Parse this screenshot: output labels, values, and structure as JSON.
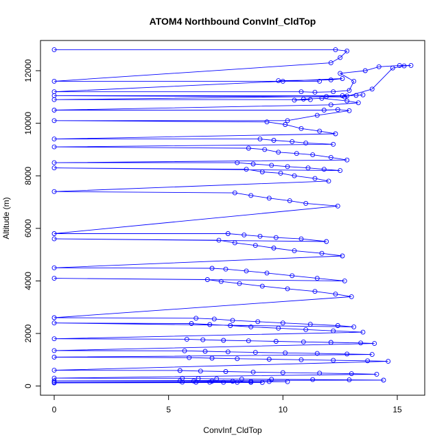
{
  "chart_data": {
    "type": "line",
    "title": "ATOM4 Northbound ConvInf_CldTop",
    "xlabel": "ConvInf_CldTop",
    "ylabel": "Altitude (m)",
    "xlim": [
      -0.6,
      16.2
    ],
    "ylim": [
      -350,
      13150
    ],
    "x_ticks": [
      0,
      5,
      10,
      15
    ],
    "x_tick_labels": [
      "0",
      "5",
      "10",
      "15"
    ],
    "y_ticks": [
      0,
      2000,
      4000,
      6000,
      8000,
      10000,
      12000
    ],
    "y_tick_labels": [
      "0",
      "2000",
      "4000",
      "6000",
      "8000",
      "10000",
      "12000"
    ],
    "grid": false,
    "series_color": "#0000ff",
    "markers": "open-circle",
    "series": [
      {
        "x": [
          0,
          12.3,
          12.8,
          12.5,
          12.1,
          0,
          11.6,
          10.0,
          9.8,
          12.1,
          12.6,
          0,
          10.8,
          11.4,
          12.2,
          12.9,
          13.1,
          12.5,
          13.6,
          14.2,
          15.1,
          15.6,
          15.3,
          14.8,
          13.9,
          12.7,
          0,
          12.6,
          13.2,
          13.5,
          12.8,
          11.9,
          0,
          11.2,
          10.5,
          10.9,
          11.7,
          12.8,
          13.3,
          12.1,
          0,
          11.8,
          12.4,
          12.9,
          11.5,
          10.2,
          0,
          9.3,
          10.1,
          10.8,
          11.6,
          12.3,
          0,
          9.0,
          9.6,
          10.4,
          11.0,
          12.2,
          0,
          8.5,
          9.2,
          9.8,
          10.6,
          11.3,
          12.1,
          12.8,
          0,
          8.0,
          8.7,
          9.5,
          10.2,
          11.1,
          11.8,
          12.5,
          0,
          8.4,
          9.1,
          9.9,
          10.5,
          11.4,
          12.0,
          0,
          7.9,
          8.6,
          9.4,
          10.3,
          11.0,
          12.4,
          0,
          7.6,
          8.3,
          9.0,
          9.7,
          10.8,
          11.9,
          0,
          7.2,
          7.9,
          8.8,
          9.6,
          10.5,
          11.7,
          12.6,
          0,
          6.9,
          7.5,
          8.4,
          9.3,
          10.4,
          11.5,
          12.7,
          0,
          6.7,
          7.3,
          8.1,
          9.1,
          10.2,
          11.4,
          12.3,
          13.0,
          0,
          6.2,
          7.0,
          7.8,
          8.9,
          10.0,
          11.2,
          12.4,
          13.1,
          0,
          6.0,
          6.8,
          7.7,
          8.6,
          9.8,
          11.0,
          12.2,
          13.5,
          0,
          5.8,
          6.5,
          7.4,
          8.5,
          9.7,
          10.9,
          12.1,
          13.4,
          14.0,
          0,
          5.7,
          6.6,
          7.6,
          8.8,
          10.1,
          11.5,
          12.8,
          13.9,
          0,
          5.9,
          6.9,
          8.0,
          9.4,
          10.8,
          12.2,
          13.7,
          14.6,
          0,
          5.5,
          6.4,
          7.5,
          8.7,
          10.0,
          11.6,
          13.0,
          14.1,
          0,
          5.6,
          6.3,
          7.1,
          8.2,
          9.5,
          11.3,
          12.9,
          14.4,
          0,
          5.5,
          6.1,
          6.9,
          7.8,
          8.6,
          9.4,
          10.2,
          0,
          5.6,
          6.2,
          6.8,
          7.4,
          8.0,
          8.6,
          9.1,
          0
        ],
        "y": [
          12800,
          12800,
          12750,
          12500,
          12300,
          11600,
          11600,
          11600,
          11620,
          11650,
          11700,
          11200,
          11200,
          11180,
          11200,
          11250,
          11600,
          11900,
          12000,
          12150,
          12200,
          12200,
          12180,
          12100,
          11300,
          11000,
          11050,
          11050,
          11060,
          11080,
          11040,
          11020,
          10900,
          10900,
          10880,
          10920,
          10950,
          10850,
          10780,
          10700,
          10500,
          10500,
          10520,
          10480,
          10300,
          10100,
          10100,
          10050,
          9950,
          9800,
          9700,
          9600,
          9400,
          9400,
          9350,
          9300,
          9250,
          9200,
          9100,
          9050,
          9000,
          8900,
          8850,
          8800,
          8700,
          8600,
          8500,
          8500,
          8450,
          8400,
          8350,
          8300,
          8250,
          8200,
          8300,
          8250,
          8150,
          8100,
          8000,
          7900,
          7800,
          7400,
          7350,
          7250,
          7150,
          7050,
          6950,
          6850,
          5800,
          5800,
          5750,
          5700,
          5650,
          5600,
          5500,
          5600,
          5550,
          5450,
          5350,
          5250,
          5150,
          5050,
          4950,
          4500,
          4480,
          4450,
          4380,
          4300,
          4200,
          4100,
          4000,
          4100,
          4050,
          3980,
          3900,
          3800,
          3700,
          3600,
          3500,
          3400,
          2600,
          2580,
          2550,
          2500,
          2450,
          2400,
          2350,
          2300,
          2250,
          2400,
          2380,
          2340,
          2300,
          2250,
          2200,
          2150,
          2100,
          2050,
          1800,
          1780,
          1760,
          1740,
          1720,
          1700,
          1680,
          1660,
          1640,
          1620,
          1350,
          1340,
          1320,
          1300,
          1280,
          1260,
          1240,
          1220,
          1200,
          1100,
          1080,
          1060,
          1040,
          1020,
          1000,
          980,
          960,
          940,
          600,
          590,
          570,
          550,
          530,
          510,
          490,
          470,
          450,
          300,
          295,
          285,
          275,
          265,
          255,
          245,
          235,
          225,
          200,
          195,
          190,
          185,
          180,
          175,
          170,
          165,
          150,
          148,
          146,
          144,
          142,
          140,
          138,
          136,
          120
        ]
      }
    ]
  }
}
